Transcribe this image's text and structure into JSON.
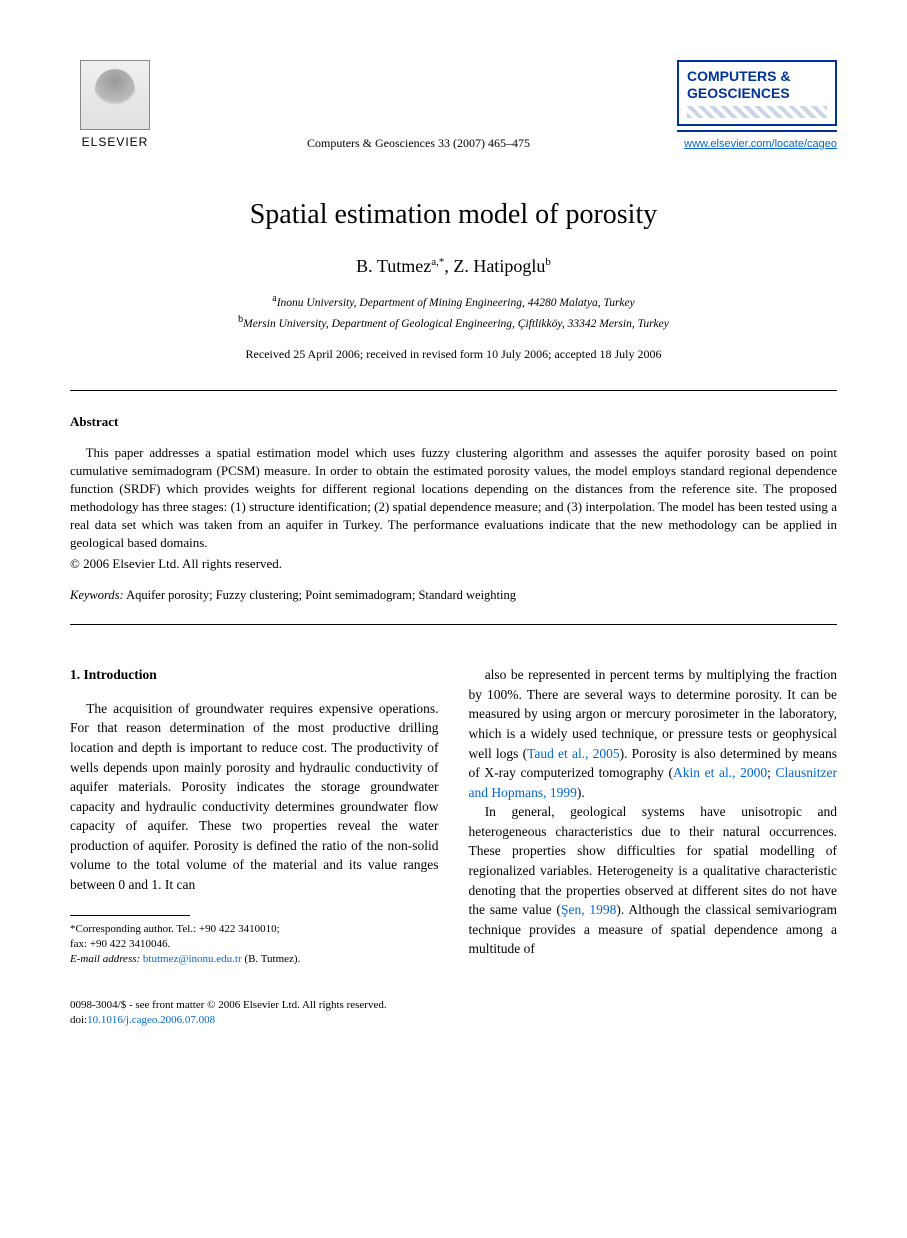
{
  "header": {
    "publisher_name": "ELSEVIER",
    "journal_ref": "Computers & Geosciences 33 (2007) 465–475",
    "journal_box_line1": "COMPUTERS &",
    "journal_box_line2": "GEOSCIENCES",
    "journal_url": "www.elsevier.com/locate/cageo"
  },
  "article": {
    "title": "Spatial estimation model of porosity",
    "author1": "B. Tutmez",
    "author1_sup": "a,",
    "author1_corr": "*",
    "author2": "Z. Hatipoglu",
    "author2_sup": "b",
    "affil_a_sup": "a",
    "affil_a": "Inonu University, Department of Mining Engineering, 44280 Malatya, Turkey",
    "affil_b_sup": "b",
    "affil_b": "Mersin University, Department of Geological Engineering, Çiftlikköy, 33342 Mersin, Turkey",
    "dates": "Received 25 April 2006; received in revised form 10 July 2006; accepted 18 July 2006"
  },
  "abstract": {
    "heading": "Abstract",
    "text": "This paper addresses a spatial estimation model which uses fuzzy clustering algorithm and assesses the aquifer porosity based on point cumulative semimadogram (PCSM) measure. In order to obtain the estimated porosity values, the model employs standard regional dependence function (SRDF) which provides weights for different regional locations depending on the distances from the reference site. The proposed methodology has three stages: (1) structure identification; (2) spatial dependence measure; and (3) interpolation. The model has been tested using a real data set which was taken from an aquifer in Turkey. The performance evaluations indicate that the new methodology can be applied in geological based domains.",
    "copyright": "© 2006 Elsevier Ltd. All rights reserved."
  },
  "keywords": {
    "label": "Keywords:",
    "text": " Aquifer porosity; Fuzzy clustering; Point semimadogram; Standard weighting"
  },
  "body": {
    "section_heading": "1.  Introduction",
    "col1_p1": "The acquisition of groundwater requires expensive operations. For that reason determination of the most productive drilling location and depth is important to reduce cost. The productivity of wells depends upon mainly porosity and hydraulic conductivity of aquifer materials. Porosity indicates the storage groundwater capacity and hydraulic conductivity determines groundwater flow capacity of aquifer. These two properties reveal the water production of aquifer. Porosity is defined the ratio of the non-solid volume to the total volume of the material and its value ranges between 0 and 1. It can",
    "col2_p1_a": "also be represented in percent terms by multiplying the fraction by 100%. There are several ways to determine porosity. It can be measured by using argon or mercury porosimeter in the laboratory, which is a widely used technique, or pressure tests or geophysical well logs (",
    "cite1": "Taud et al., 2005",
    "col2_p1_b": "). Porosity is also determined by means of X-ray computerized tomography (",
    "cite2": "Akin et al., 2000",
    "col2_p1_c": "; ",
    "cite3": "Clausnitzer and Hopmans, 1999",
    "col2_p1_d": ").",
    "col2_p2_a": "In general, geological systems have unisotropic and heterogeneous characteristics due to their natural occurrences. These properties show difficulties for spatial modelling of regionalized variables. Heterogeneity is a qualitative characteristic denoting that the properties observed at different sites do not have the same value (",
    "cite4": "Şen, 1998",
    "col2_p2_b": "). Although the classical semivariogram technique provides a measure of spatial dependence among a multitude of"
  },
  "footnotes": {
    "corr_label": "*Corresponding author. Tel.: +90 422 3410010;",
    "fax": "fax: +90 422 3410046.",
    "email_label": "E-mail address:",
    "email": "btutmez@inonu.edu.tr",
    "email_owner": "(B. Tutmez)."
  },
  "bottom": {
    "issn_line": "0098-3004/$ - see front matter © 2006 Elsevier Ltd. All rights reserved.",
    "doi_label": "doi:",
    "doi": "10.1016/j.cageo.2006.07.008"
  }
}
